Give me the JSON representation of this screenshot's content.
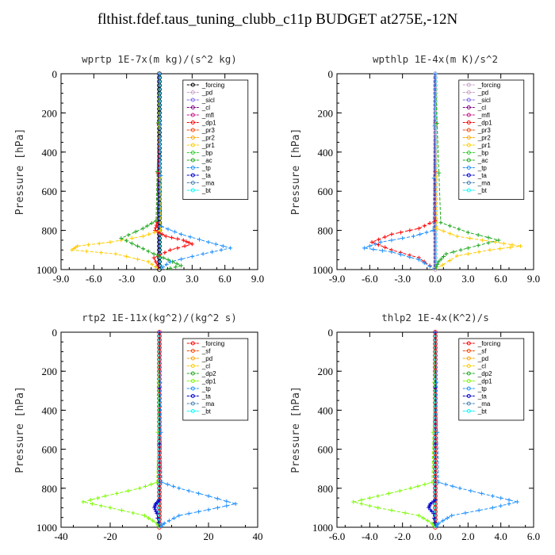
{
  "title": "flthist.fdef.taus_tuning_clubb_c11p  BUDGET at275E,-12N",
  "chart_data": [
    {
      "type": "line",
      "title": "wprtp  1E-7x(m kg)/(s^2 kg)",
      "ylabel": "Pressure [hPa]",
      "xlim": [
        -9,
        9
      ],
      "ylim": [
        1000,
        0
      ],
      "x_ticks": [
        "-9.0",
        "-6.0",
        "-3.0",
        "0.0",
        "3.0",
        "6.0",
        "9.0"
      ],
      "y_ticks": [
        "0",
        "200",
        "400",
        "600",
        "800",
        "1000"
      ],
      "legend": "top-right",
      "grid": false,
      "series": [
        {
          "name": "_forcing",
          "color": "#000000",
          "marker": "o"
        },
        {
          "name": "_pd",
          "color": "#c8a2c8"
        },
        {
          "name": "_sicl",
          "color": "#7b68ee"
        },
        {
          "name": "_cl",
          "color": "#800080"
        },
        {
          "name": "_mfl",
          "color": "#c71585"
        },
        {
          "name": "_dp1",
          "color": "#ff0000",
          "x": [
            0,
            -0.2,
            -0.4,
            0.6,
            2.2,
            3.0,
            1.0,
            -0.5,
            0
          ],
          "y": [
            0,
            760,
            800,
            830,
            850,
            870,
            900,
            940,
            1000
          ]
        },
        {
          "name": "_pr3",
          "color": "#ff4500"
        },
        {
          "name": "_pr2",
          "color": "#ffa500"
        },
        {
          "name": "_pr1",
          "color": "#ffcc00",
          "x": [
            0,
            0.1,
            -1.5,
            -4.5,
            -7.5,
            -8.0,
            -4.0,
            -1.0,
            0
          ],
          "y": [
            0,
            800,
            830,
            860,
            880,
            900,
            920,
            960,
            1000
          ]
        },
        {
          "name": "_bp",
          "color": "#32cd32"
        },
        {
          "name": "_ac",
          "color": "#22aa22",
          "x": [
            0,
            -0.3,
            -1.5,
            -3.5,
            -2.0,
            -0.5,
            0.8,
            2.0,
            0.5
          ],
          "y": [
            0,
            750,
            790,
            840,
            880,
            920,
            950,
            980,
            1000
          ]
        },
        {
          "name": "_tp",
          "color": "#1e90ff",
          "x": [
            0,
            0.2,
            2.0,
            4.5,
            6.5,
            4.0,
            1.0,
            0
          ],
          "y": [
            0,
            780,
            820,
            860,
            890,
            920,
            960,
            1000
          ]
        },
        {
          "name": "_ta",
          "color": "#0000cd"
        },
        {
          "name": "_ma",
          "color": "#4682b4"
        },
        {
          "name": "_bt",
          "color": "#00ffff"
        }
      ]
    },
    {
      "type": "line",
      "title": "wpthlp  1E-4x(m K)/s^2",
      "ylabel": "Pressure [hPa]",
      "xlim": [
        -9,
        9
      ],
      "ylim": [
        1000,
        0
      ],
      "x_ticks": [
        "-9.0",
        "-6.0",
        "-3.0",
        "0.0",
        "3.0",
        "6.0",
        "9.0"
      ],
      "y_ticks": [
        "0",
        "200",
        "400",
        "600",
        "800",
        "1000"
      ],
      "legend": "top-right",
      "grid": false,
      "series": [
        {
          "name": "_forcing",
          "color": "#c8a2c8",
          "marker": "o"
        },
        {
          "name": "_pd",
          "color": "#c8a2c8"
        },
        {
          "name": "_sicl",
          "color": "#7b68ee"
        },
        {
          "name": "_cl",
          "color": "#800080"
        },
        {
          "name": "_mfl",
          "color": "#c71585"
        },
        {
          "name": "_dp1",
          "color": "#ff0000",
          "x": [
            0,
            0,
            -1.5,
            -4.0,
            -5.8,
            -4.0,
            -1.5,
            0
          ],
          "y": [
            0,
            750,
            790,
            820,
            860,
            900,
            940,
            1000
          ]
        },
        {
          "name": "_pr3",
          "color": "#ff4500"
        },
        {
          "name": "_pr2",
          "color": "#ffa500"
        },
        {
          "name": "_pr1",
          "color": "#ffcc00",
          "x": [
            0,
            0.1,
            2.0,
            5.5,
            7.8,
            5.0,
            2.0,
            0
          ],
          "y": [
            0,
            790,
            830,
            860,
            880,
            900,
            930,
            1000
          ]
        },
        {
          "name": "_bp",
          "color": "#32cd32"
        },
        {
          "name": "_ac",
          "color": "#22aa22",
          "x": [
            0,
            0.5,
            3.0,
            5.8,
            3.0,
            1.0,
            0.3,
            0
          ],
          "y": [
            0,
            760,
            810,
            850,
            890,
            920,
            960,
            1000
          ]
        },
        {
          "name": "_tp",
          "color": "#1e90ff",
          "x": [
            0,
            -0.2,
            -2.0,
            -5.0,
            -6.5,
            -4.0,
            -1.5,
            0
          ],
          "y": [
            0,
            800,
            830,
            860,
            890,
            910,
            950,
            1000
          ]
        },
        {
          "name": "_ta",
          "color": "#0000cd"
        },
        {
          "name": "_ma",
          "color": "#4682b4"
        },
        {
          "name": "_bt",
          "color": "#00ffff"
        }
      ]
    },
    {
      "type": "line",
      "title": "rtp2  1E-11x(kg^2)/(kg^2 s)",
      "ylabel": "Pressure [hPa]",
      "xlim": [
        -40,
        40
      ],
      "ylim": [
        1000,
        0
      ],
      "x_ticks": [
        "-40",
        "-20",
        "0",
        "20",
        "40"
      ],
      "y_ticks": [
        "0",
        "200",
        "400",
        "600",
        "800",
        "1000"
      ],
      "legend": "top-right",
      "grid": false,
      "series": [
        {
          "name": "_forcing",
          "color": "#ff0000",
          "marker": "o"
        },
        {
          "name": "_sf",
          "color": "#ff4500"
        },
        {
          "name": "_pd",
          "color": "#ffa500"
        },
        {
          "name": "_cl",
          "color": "#ffcc00"
        },
        {
          "name": "_dp2",
          "color": "#22aa22"
        },
        {
          "name": "_dp1",
          "color": "#7cfc00",
          "x": [
            0,
            -1.0,
            -8.0,
            -22.0,
            -31.0,
            -20.0,
            -6.0,
            -1.0,
            0
          ],
          "y": [
            0,
            770,
            800,
            840,
            870,
            900,
            940,
            980,
            1000
          ]
        },
        {
          "name": "_tp",
          "color": "#1e90ff",
          "x": [
            0,
            1.0,
            8.0,
            20.0,
            31.0,
            20.0,
            8.0,
            2.0,
            0
          ],
          "y": [
            0,
            770,
            800,
            840,
            880,
            910,
            940,
            980,
            1000
          ]
        },
        {
          "name": "_ta",
          "color": "#0000cd",
          "x": [
            0,
            0,
            -1.5,
            -2.0,
            -1.0,
            0
          ],
          "y": [
            0,
            860,
            880,
            900,
            930,
            1000
          ]
        },
        {
          "name": "_ma",
          "color": "#4682b4"
        },
        {
          "name": "_bt",
          "color": "#00ffff"
        }
      ]
    },
    {
      "type": "line",
      "title": "thlp2  1E-4x(K^2)/s",
      "ylabel": "Pressure [hPa]",
      "xlim": [
        -6,
        6
      ],
      "ylim": [
        1000,
        0
      ],
      "x_ticks": [
        "-6.0",
        "-4.0",
        "-2.0",
        "0.0",
        "2.0",
        "4.0",
        "6.0"
      ],
      "y_ticks": [
        "0",
        "200",
        "400",
        "600",
        "800",
        "1000"
      ],
      "legend": "top-right",
      "grid": false,
      "series": [
        {
          "name": "_forcing",
          "color": "#ff0000",
          "marker": "o"
        },
        {
          "name": "_sf",
          "color": "#ff4500"
        },
        {
          "name": "_pd",
          "color": "#ffa500"
        },
        {
          "name": "_cl",
          "color": "#ffcc00"
        },
        {
          "name": "_dp2",
          "color": "#22aa22"
        },
        {
          "name": "_dp1",
          "color": "#7cfc00",
          "x": [
            0,
            -0.2,
            -1.5,
            -3.5,
            -5.0,
            -3.5,
            -1.0,
            -0.2,
            0
          ],
          "y": [
            0,
            770,
            800,
            840,
            870,
            900,
            940,
            980,
            1000
          ]
        },
        {
          "name": "_tp",
          "color": "#1e90ff",
          "x": [
            0,
            0.2,
            1.5,
            3.5,
            5.0,
            3.5,
            1.0,
            0.2,
            0
          ],
          "y": [
            0,
            770,
            800,
            840,
            870,
            900,
            940,
            980,
            1000
          ]
        },
        {
          "name": "_ta",
          "color": "#0000cd",
          "x": [
            0,
            0,
            -0.3,
            -0.4,
            -0.1,
            0
          ],
          "y": [
            0,
            860,
            880,
            900,
            930,
            1000
          ]
        },
        {
          "name": "_ma",
          "color": "#4682b4"
        },
        {
          "name": "_bt",
          "color": "#00ffff"
        }
      ]
    }
  ]
}
